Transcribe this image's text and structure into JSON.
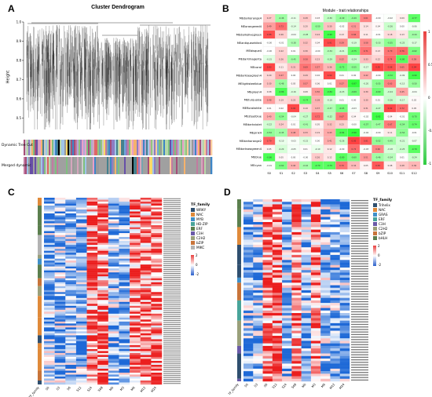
{
  "panels": {
    "A": {
      "label": "A",
      "title": "Cluster Dendrogram",
      "ylabel": "Height",
      "yticks": [
        "1.0",
        "0.9",
        "0.8",
        "0.7",
        "0.6",
        "0.5"
      ],
      "rows": [
        "Dynamic Tree Cut",
        "Merged dynamic"
      ]
    },
    "B": {
      "label": "B",
      "title": "Module - trait relationships",
      "modules": [
        "MEdarkorange4",
        "MEorangered4",
        "MEdarkolivegreen",
        "MEantiquewhite4",
        "MEbisque4",
        "MEdarkmagenta",
        "MEcoral",
        "MEdarkseagreen4",
        "MElightsteelblue",
        "MEgreen4",
        "MEturquoise",
        "MEfloralwhite",
        "MEsteelblue",
        "MEdarkviolet",
        "MEpink4",
        "MEdarkorange2",
        "MEdarkseagreen4",
        "MEblue",
        "MEcyan"
      ],
      "traits": [
        "S0",
        "S1",
        "S2",
        "S3",
        "S4",
        "S5",
        "S6",
        "S7",
        "S8",
        "S9",
        "S10",
        "S11",
        "S12"
      ],
      "colorbar": [
        "1",
        "0.5",
        "0",
        "-0.5",
        "-1"
      ]
    },
    "C": {
      "label": "C",
      "legend_title": "TF_family",
      "legend": [
        {
          "name": "WRKY",
          "color": "#2f4f6f"
        },
        {
          "name": "NAC",
          "color": "#e08a3a"
        },
        {
          "name": "MYB",
          "color": "#3f8fc8"
        },
        {
          "name": "HD-ZIP",
          "color": "#48a49a"
        },
        {
          "name": "ERF",
          "color": "#5b7f4e"
        },
        {
          "name": "C3H",
          "color": "#6a5aa8"
        },
        {
          "name": "C2H2",
          "color": "#9aa07a"
        },
        {
          "name": "bZIP",
          "color": "#c8743a"
        },
        {
          "name": "MIKC",
          "color": "#b3b3b3"
        }
      ],
      "colorbar": [
        "2",
        "0",
        "-2"
      ],
      "xcats": [
        "S0",
        "S3",
        "S6",
        "S12",
        "S24",
        "S48",
        "M0",
        "M3",
        "M6",
        "M12",
        "M24"
      ],
      "xlabel": "TF_family"
    },
    "D": {
      "label": "D",
      "legend_title": "TF_family",
      "legend": [
        {
          "name": "Trihelix",
          "color": "#2f4f6f"
        },
        {
          "name": "NAC",
          "color": "#e08a3a"
        },
        {
          "name": "GRAS",
          "color": "#3f8fc8"
        },
        {
          "name": "ERF",
          "color": "#48a49a"
        },
        {
          "name": "C3H",
          "color": "#6a5aa8"
        },
        {
          "name": "C2H2",
          "color": "#9aa07a"
        },
        {
          "name": "bZIP",
          "color": "#c8743a"
        },
        {
          "name": "bHLH",
          "color": "#5b7f4e"
        }
      ],
      "colorbar": [
        "2",
        "0",
        "-2"
      ],
      "xcats": [
        "S0",
        "S3",
        "S6",
        "S12",
        "S24",
        "S48",
        "M0",
        "M3",
        "M6",
        "M12",
        "M24"
      ],
      "xlabel": "TF_family"
    }
  }
}
